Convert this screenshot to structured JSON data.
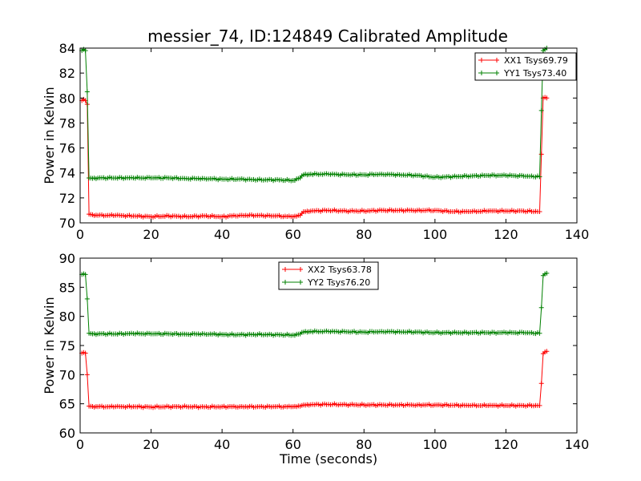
{
  "title": "messier_74, ID:124849 Calibrated Amplitude",
  "chart_data": [
    {
      "type": "line",
      "ylabel": "Power in Kelvin",
      "xlabel": "",
      "xlim": [
        0,
        140
      ],
      "ylim": [
        70,
        84
      ],
      "xticks": [
        "0",
        "20",
        "40",
        "60",
        "80",
        "100",
        "120",
        "140"
      ],
      "yticks": [
        "70",
        "72",
        "74",
        "76",
        "78",
        "80",
        "82",
        "84"
      ],
      "legend_position": "top-right",
      "grid": false,
      "series": [
        {
          "name": "XX1 Tsys69.79",
          "color": "#ff0000",
          "marker": "+",
          "points": [
            [
              0.5,
              79.8
            ],
            [
              1,
              79.9
            ],
            [
              1.5,
              79.8
            ],
            [
              2,
              79.5
            ],
            [
              2.5,
              70.7
            ],
            [
              5,
              70.6
            ],
            [
              10,
              70.6
            ],
            [
              15,
              70.55
            ],
            [
              20,
              70.5
            ],
            [
              25,
              70.55
            ],
            [
              30,
              70.5
            ],
            [
              35,
              70.55
            ],
            [
              40,
              70.5
            ],
            [
              45,
              70.6
            ],
            [
              50,
              70.6
            ],
            [
              55,
              70.55
            ],
            [
              60,
              70.5
            ],
            [
              62,
              70.6
            ],
            [
              63,
              70.9
            ],
            [
              65,
              70.95
            ],
            [
              70,
              71.0
            ],
            [
              75,
              70.95
            ],
            [
              80,
              70.95
            ],
            [
              85,
              71.0
            ],
            [
              90,
              71.0
            ],
            [
              95,
              71.0
            ],
            [
              100,
              71.0
            ],
            [
              105,
              70.9
            ],
            [
              110,
              70.9
            ],
            [
              115,
              70.95
            ],
            [
              120,
              70.95
            ],
            [
              125,
              70.95
            ],
            [
              129.5,
              70.9
            ],
            [
              130,
              75.5
            ],
            [
              130.5,
              80.0
            ],
            [
              131,
              80.05
            ],
            [
              131.5,
              80.0
            ]
          ]
        },
        {
          "name": "YY1 Tsys73.40",
          "color": "#008000",
          "marker": "+",
          "points": [
            [
              0.5,
              83.8
            ],
            [
              1,
              83.9
            ],
            [
              1.5,
              83.8
            ],
            [
              2,
              80.5
            ],
            [
              2.5,
              73.6
            ],
            [
              5,
              73.6
            ],
            [
              10,
              73.6
            ],
            [
              15,
              73.6
            ],
            [
              20,
              73.6
            ],
            [
              25,
              73.6
            ],
            [
              30,
              73.55
            ],
            [
              35,
              73.55
            ],
            [
              40,
              73.5
            ],
            [
              45,
              73.5
            ],
            [
              50,
              73.45
            ],
            [
              55,
              73.45
            ],
            [
              60,
              73.4
            ],
            [
              62,
              73.6
            ],
            [
              63,
              73.85
            ],
            [
              65,
              73.9
            ],
            [
              70,
              73.9
            ],
            [
              75,
              73.85
            ],
            [
              80,
              73.85
            ],
            [
              85,
              73.9
            ],
            [
              90,
              73.85
            ],
            [
              95,
              73.8
            ],
            [
              100,
              73.65
            ],
            [
              105,
              73.7
            ],
            [
              110,
              73.75
            ],
            [
              115,
              73.8
            ],
            [
              120,
              73.8
            ],
            [
              125,
              73.75
            ],
            [
              129.5,
              73.7
            ],
            [
              130,
              79
            ],
            [
              130.5,
              83.8
            ],
            [
              131,
              83.9
            ],
            [
              131.5,
              84.0
            ]
          ]
        }
      ]
    },
    {
      "type": "line",
      "ylabel": "Power in Kelvin",
      "xlabel": "Time (seconds)",
      "xlim": [
        0,
        140
      ],
      "ylim": [
        60,
        90
      ],
      "xticks": [
        "0",
        "20",
        "40",
        "60",
        "80",
        "100",
        "120",
        "140"
      ],
      "yticks": [
        "60",
        "65",
        "70",
        "75",
        "80",
        "85",
        "90"
      ],
      "legend_position": "top-center",
      "grid": false,
      "series": [
        {
          "name": "XX2 Tsys63.78",
          "color": "#ff0000",
          "marker": "+",
          "points": [
            [
              0.5,
              73.7
            ],
            [
              1,
              73.8
            ],
            [
              1.5,
              73.7
            ],
            [
              2,
              70.0
            ],
            [
              2.5,
              64.6
            ],
            [
              5,
              64.5
            ],
            [
              10,
              64.5
            ],
            [
              15,
              64.5
            ],
            [
              20,
              64.45
            ],
            [
              25,
              64.5
            ],
            [
              30,
              64.5
            ],
            [
              35,
              64.45
            ],
            [
              40,
              64.5
            ],
            [
              45,
              64.5
            ],
            [
              50,
              64.5
            ],
            [
              55,
              64.5
            ],
            [
              60,
              64.5
            ],
            [
              62,
              64.6
            ],
            [
              63,
              64.8
            ],
            [
              65,
              64.85
            ],
            [
              70,
              64.9
            ],
            [
              75,
              64.85
            ],
            [
              80,
              64.8
            ],
            [
              85,
              64.8
            ],
            [
              90,
              64.8
            ],
            [
              95,
              64.8
            ],
            [
              100,
              64.8
            ],
            [
              105,
              64.75
            ],
            [
              110,
              64.7
            ],
            [
              115,
              64.7
            ],
            [
              120,
              64.7
            ],
            [
              125,
              64.7
            ],
            [
              129.5,
              64.7
            ],
            [
              130,
              68.5
            ],
            [
              130.5,
              73.6
            ],
            [
              131,
              73.9
            ],
            [
              131.5,
              74.0
            ]
          ]
        },
        {
          "name": "YY2 Tsys76.20",
          "color": "#008000",
          "marker": "+",
          "points": [
            [
              0.5,
              87.2
            ],
            [
              1,
              87.3
            ],
            [
              1.5,
              87.2
            ],
            [
              2,
              83.0
            ],
            [
              2.5,
              77.1
            ],
            [
              5,
              77.0
            ],
            [
              10,
              77.0
            ],
            [
              15,
              77.05
            ],
            [
              20,
              77.0
            ],
            [
              25,
              77.0
            ],
            [
              30,
              76.95
            ],
            [
              35,
              77.0
            ],
            [
              40,
              76.9
            ],
            [
              45,
              76.85
            ],
            [
              50,
              76.9
            ],
            [
              55,
              76.85
            ],
            [
              60,
              76.8
            ],
            [
              62,
              77.0
            ],
            [
              63,
              77.3
            ],
            [
              65,
              77.4
            ],
            [
              70,
              77.4
            ],
            [
              75,
              77.35
            ],
            [
              80,
              77.3
            ],
            [
              85,
              77.4
            ],
            [
              90,
              77.35
            ],
            [
              95,
              77.3
            ],
            [
              100,
              77.2
            ],
            [
              105,
              77.2
            ],
            [
              110,
              77.2
            ],
            [
              115,
              77.2
            ],
            [
              120,
              77.2
            ],
            [
              125,
              77.2
            ],
            [
              129.5,
              77.1
            ],
            [
              130,
              81.5
            ],
            [
              130.5,
              87.0
            ],
            [
              131,
              87.3
            ],
            [
              131.5,
              87.4
            ]
          ]
        }
      ]
    }
  ]
}
